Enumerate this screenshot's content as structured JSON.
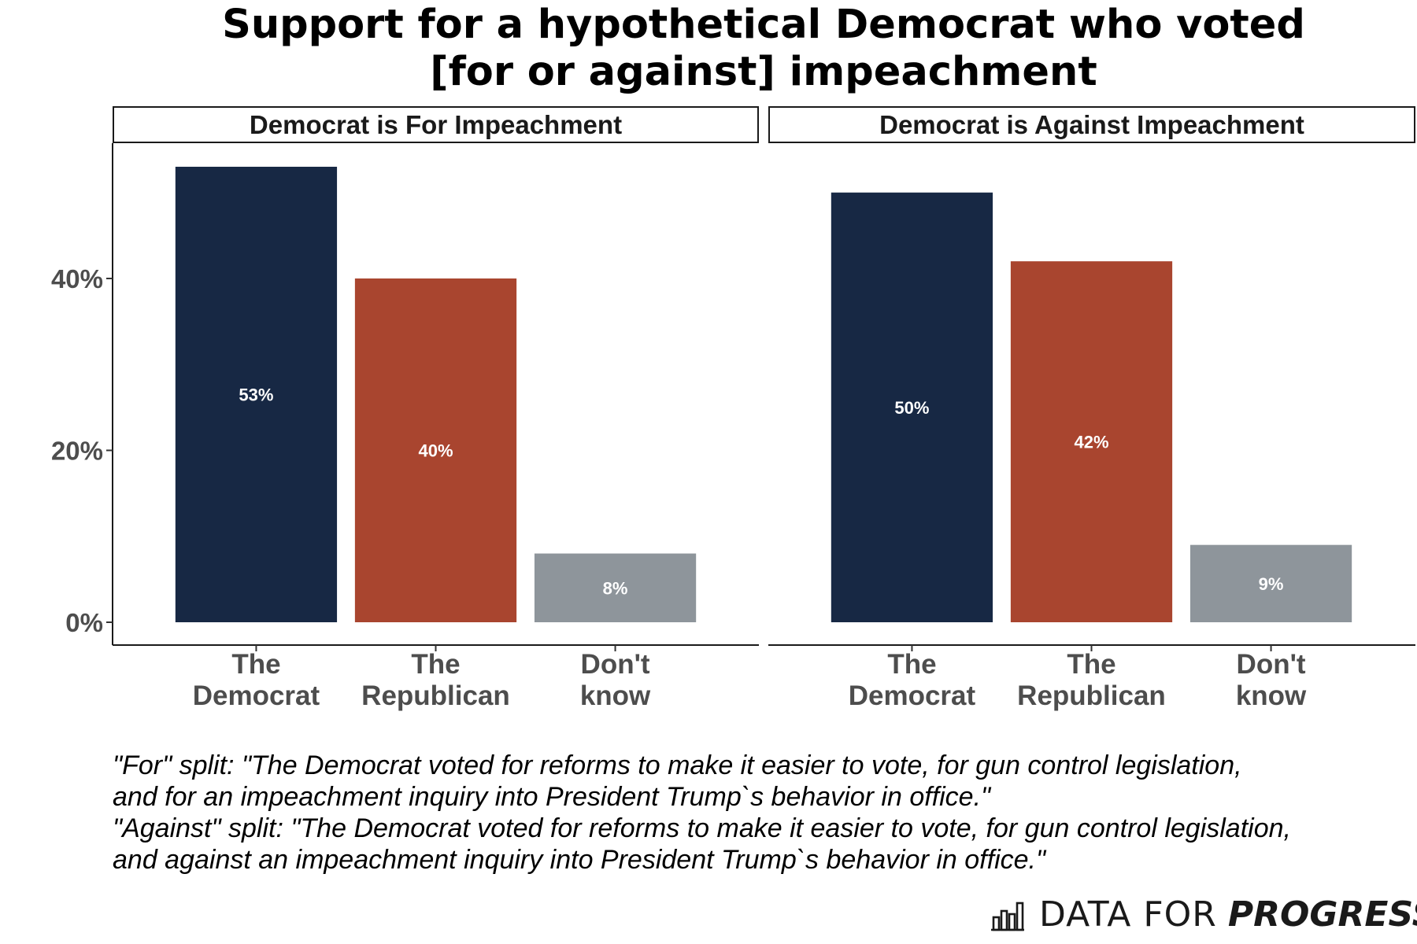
{
  "title_lines": [
    "Support for a hypothetical Democrat who voted",
    "[for or against] impeachment"
  ],
  "caption_lines": [
    "\"For\" split: \"The Democrat voted for reforms to make it easier to vote, for gun control legislation,",
    "and for an impeachment inquiry into President Trump`s behavior in office.\"",
    "\"Against\" split: \"The Democrat voted for reforms to make it easier to vote, for gun control legislation,",
    "and against an impeachment inquiry into President Trump`s behavior in office.\""
  ],
  "logo": {
    "light": "DATA FOR",
    "bold": "PROGRESS",
    "icon": "bar-chart-logo-icon"
  },
  "colors": {
    "democrat": "#172844",
    "republican": "#a9452f",
    "dont_know": "#8e959b"
  },
  "chart_data": {
    "type": "bar",
    "ylim": [
      0,
      55
    ],
    "yticks": [
      0,
      20,
      40
    ],
    "ytick_labels": [
      "0%",
      "20%",
      "40%"
    ],
    "grid": false,
    "legend": "none",
    "panels": [
      {
        "title": "Democrat is For Impeachment",
        "categories": [
          "The Democrat",
          "The Republican",
          "Don't know"
        ],
        "category_lines": [
          [
            "The",
            "Democrat"
          ],
          [
            "The",
            "Republican"
          ],
          [
            "Don't",
            "know"
          ]
        ],
        "values": [
          53,
          40,
          8
        ],
        "labels": [
          "53%",
          "40%",
          "8%"
        ]
      },
      {
        "title": "Democrat is Against Impeachment",
        "categories": [
          "The Democrat",
          "The Republican",
          "Don't know"
        ],
        "category_lines": [
          [
            "The",
            "Democrat"
          ],
          [
            "The",
            "Republican"
          ],
          [
            "Don't",
            "know"
          ]
        ],
        "values": [
          50,
          42,
          9
        ],
        "labels": [
          "50%",
          "42%",
          "9%"
        ]
      }
    ]
  }
}
